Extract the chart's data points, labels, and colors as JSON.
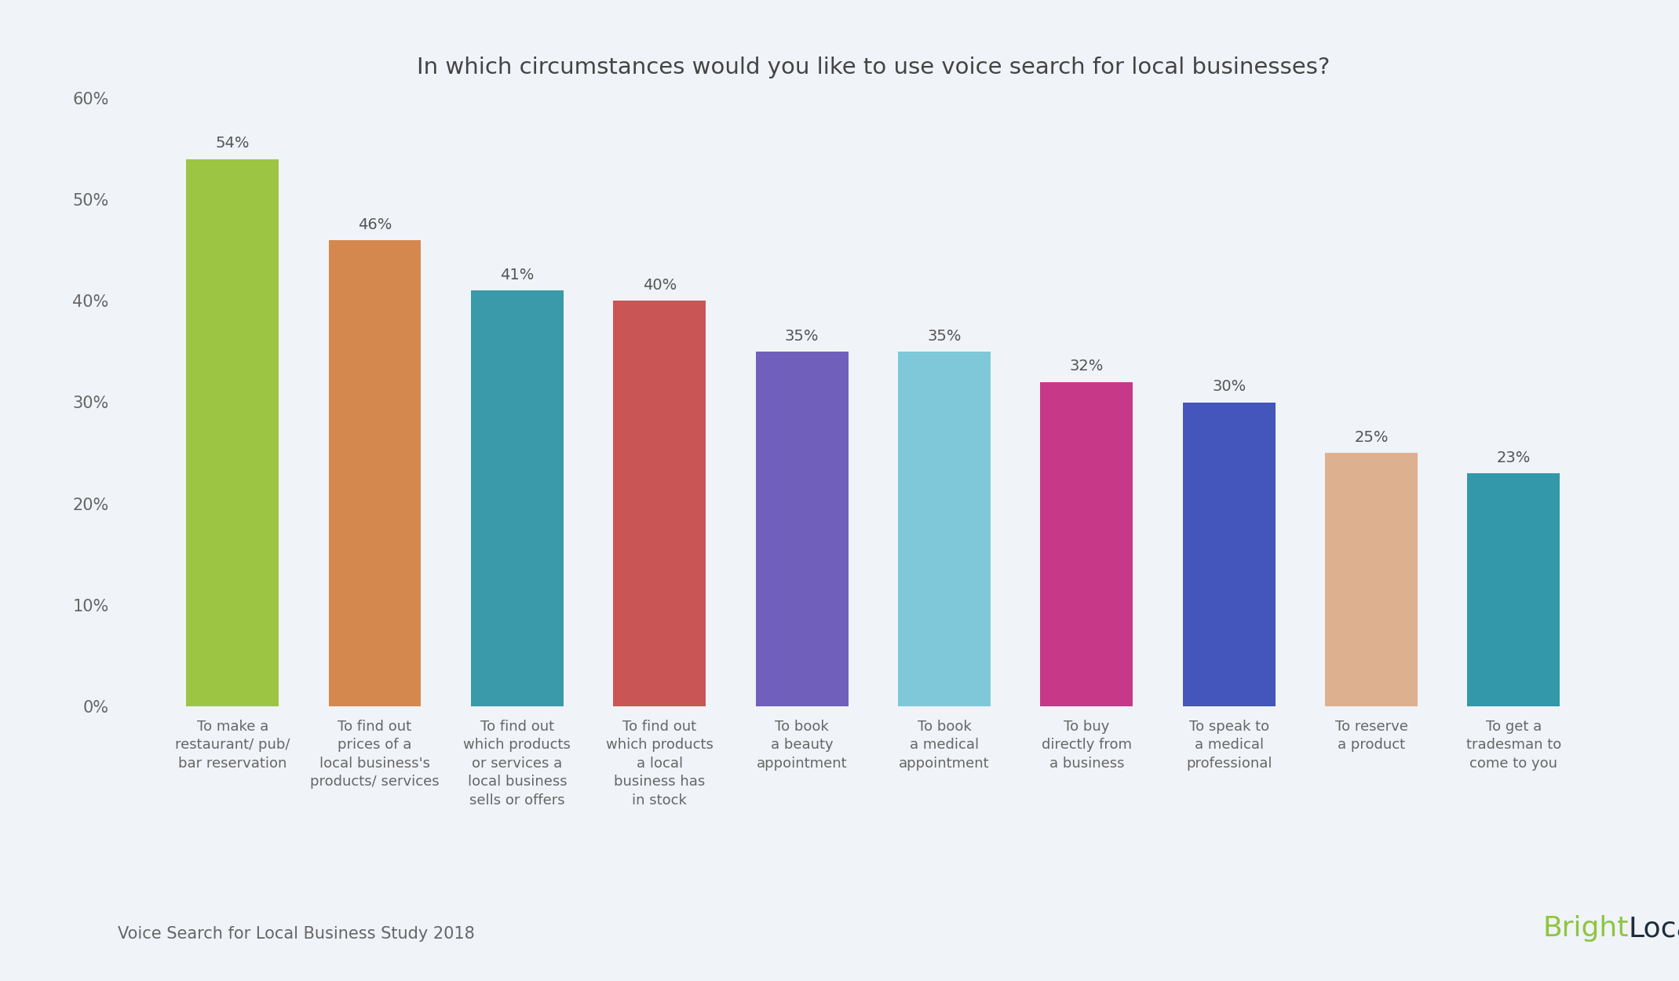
{
  "title": "In which circumstances would you like to use voice search for local businesses?",
  "categories": [
    "To make a\nrestaurant/ pub/\nbar reservation",
    "To find out\nprices of a\nlocal business's\nproducts/ services",
    "To find out\nwhich products\nor services a\nlocal business\nsells or offers",
    "To find out\nwhich products\na local\nbusiness has\nin stock",
    "To book\na beauty\nappointment",
    "To book\na medical\nappointment",
    "To buy\ndirectly from\na business",
    "To speak to\na medical\nprofessional",
    "To reserve\na product",
    "To get a\ntradesman to\ncome to you"
  ],
  "values": [
    54,
    46,
    41,
    40,
    35,
    35,
    32,
    30,
    25,
    23
  ],
  "bar_colors": [
    "#9dc544",
    "#d4884e",
    "#3a9aaa",
    "#c95555",
    "#7060bb",
    "#7ec8da",
    "#c83888",
    "#4455bb",
    "#ddb090",
    "#3399aa"
  ],
  "ylim": [
    0,
    60
  ],
  "yticks": [
    0,
    10,
    20,
    30,
    40,
    50,
    60
  ],
  "background_color": "#f0f3f8",
  "footer_left": "Voice Search for Local Business Study 2018",
  "bright_color": "#8dc63f",
  "local_color": "#1e2d3b",
  "logo_text_bright": "Bright",
  "logo_text_local": "Local",
  "title_fontsize": 21,
  "label_fontsize": 14,
  "ytick_fontsize": 15,
  "xtick_fontsize": 13,
  "footer_fontsize": 15,
  "logo_fontsize": 26
}
